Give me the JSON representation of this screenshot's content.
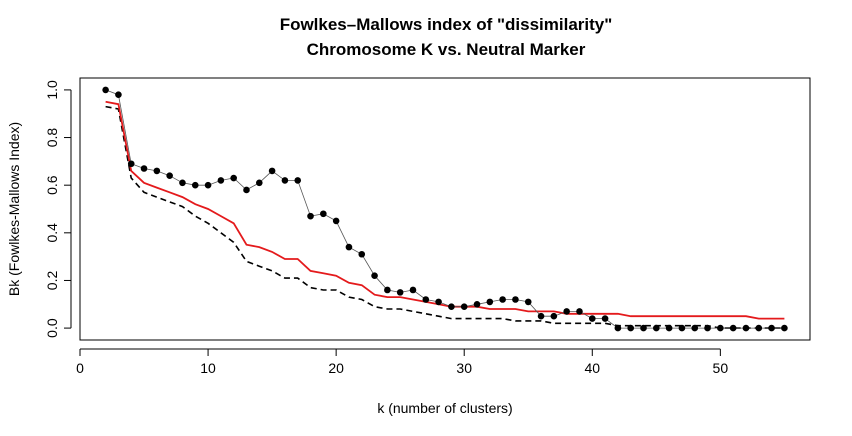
{
  "chart_data": {
    "type": "line",
    "title": "Fowlkes–Mallows index of \"dissimilarity\"",
    "subtitle": "Chromosome K vs. Neutral Marker",
    "xlabel": "k (number of clusters)",
    "ylabel": "Bk (Fowlkes-Mallows Index)",
    "xlim": [
      0,
      57
    ],
    "ylim": [
      -0.05,
      1.05
    ],
    "x_ticks": [
      0,
      10,
      20,
      30,
      40,
      50
    ],
    "y_ticks": [
      0.0,
      0.2,
      0.4,
      0.6,
      0.8,
      1.0
    ],
    "x_tick_labels": [
      "0",
      "10",
      "20",
      "30",
      "40",
      "50"
    ],
    "y_tick_labels": [
      "0.0",
      "0.2",
      "0.4",
      "0.6",
      "0.8",
      "1.0"
    ],
    "grid": false,
    "series": [
      {
        "style": "points with thin connecting line",
        "color": "#000000",
        "x": [
          2,
          3,
          4,
          5,
          6,
          7,
          8,
          9,
          10,
          11,
          12,
          13,
          14,
          15,
          16,
          17,
          18,
          19,
          20,
          21,
          22,
          23,
          24,
          25,
          26,
          27,
          28,
          29,
          30,
          31,
          32,
          33,
          34,
          35,
          36,
          37,
          38,
          39,
          40,
          41,
          42,
          43,
          44,
          45,
          46,
          47,
          48,
          49,
          50,
          51,
          52,
          53,
          54,
          55
        ],
        "values": [
          1.0,
          0.98,
          0.69,
          0.67,
          0.66,
          0.64,
          0.61,
          0.6,
          0.6,
          0.62,
          0.63,
          0.58,
          0.61,
          0.66,
          0.62,
          0.62,
          0.47,
          0.48,
          0.45,
          0.34,
          0.31,
          0.22,
          0.16,
          0.15,
          0.16,
          0.12,
          0.11,
          0.09,
          0.09,
          0.1,
          0.11,
          0.12,
          0.12,
          0.11,
          0.05,
          0.05,
          0.07,
          0.07,
          0.04,
          0.04,
          0.0,
          0.0,
          0.0,
          0.0,
          0.0,
          0.0,
          0.0,
          0.0,
          0.0,
          0.0,
          0.0,
          0.0,
          0.0,
          0.0
        ]
      },
      {
        "style": "solid line",
        "color": "#e41a1c",
        "x": [
          2,
          3,
          4,
          5,
          6,
          7,
          8,
          9,
          10,
          11,
          12,
          13,
          14,
          15,
          16,
          17,
          18,
          19,
          20,
          21,
          22,
          23,
          24,
          25,
          26,
          27,
          28,
          29,
          30,
          31,
          32,
          33,
          34,
          35,
          36,
          37,
          38,
          39,
          40,
          41,
          42,
          43,
          44,
          45,
          46,
          47,
          48,
          49,
          50,
          51,
          52,
          53,
          54,
          55
        ],
        "values": [
          0.95,
          0.94,
          0.66,
          0.61,
          0.59,
          0.57,
          0.55,
          0.52,
          0.5,
          0.47,
          0.44,
          0.35,
          0.34,
          0.32,
          0.29,
          0.29,
          0.24,
          0.23,
          0.22,
          0.19,
          0.18,
          0.14,
          0.13,
          0.13,
          0.12,
          0.11,
          0.1,
          0.09,
          0.09,
          0.09,
          0.08,
          0.08,
          0.08,
          0.07,
          0.07,
          0.07,
          0.06,
          0.06,
          0.06,
          0.06,
          0.06,
          0.05,
          0.05,
          0.05,
          0.05,
          0.05,
          0.05,
          0.05,
          0.05,
          0.05,
          0.05,
          0.04,
          0.04,
          0.04
        ]
      },
      {
        "style": "dashed line",
        "color": "#000000",
        "x": [
          2,
          3,
          4,
          5,
          6,
          7,
          8,
          9,
          10,
          11,
          12,
          13,
          14,
          15,
          16,
          17,
          18,
          19,
          20,
          21,
          22,
          23,
          24,
          25,
          26,
          27,
          28,
          29,
          30,
          31,
          32,
          33,
          34,
          35,
          36,
          37,
          38,
          39,
          40,
          41,
          42,
          43,
          44,
          45,
          46,
          47,
          48,
          49,
          50,
          51,
          52,
          53,
          54,
          55
        ],
        "values": [
          0.93,
          0.92,
          0.63,
          0.57,
          0.55,
          0.53,
          0.51,
          0.47,
          0.44,
          0.4,
          0.36,
          0.28,
          0.26,
          0.24,
          0.21,
          0.21,
          0.17,
          0.16,
          0.16,
          0.13,
          0.12,
          0.09,
          0.08,
          0.08,
          0.07,
          0.06,
          0.05,
          0.04,
          0.04,
          0.04,
          0.04,
          0.04,
          0.03,
          0.03,
          0.03,
          0.02,
          0.02,
          0.02,
          0.02,
          0.02,
          0.01,
          0.01,
          0.01,
          0.01,
          0.01,
          0.01,
          0.01,
          0.01,
          0.0,
          0.0,
          0.0,
          0.0,
          0.0,
          0.0
        ]
      }
    ]
  }
}
